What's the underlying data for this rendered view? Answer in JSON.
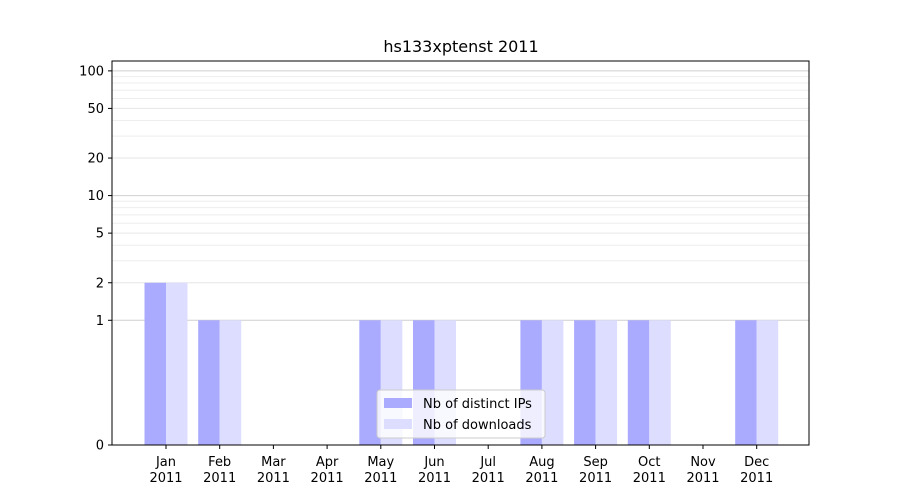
{
  "chart_data": {
    "type": "bar",
    "title": "hs133xptenst 2011",
    "xlabel": "",
    "ylabel": "",
    "categories": [
      [
        "Jan",
        "2011"
      ],
      [
        "Feb",
        "2011"
      ],
      [
        "Mar",
        "2011"
      ],
      [
        "Apr",
        "2011"
      ],
      [
        "May",
        "2011"
      ],
      [
        "Jun",
        "2011"
      ],
      [
        "Jul",
        "2011"
      ],
      [
        "Aug",
        "2011"
      ],
      [
        "Sep",
        "2011"
      ],
      [
        "Oct",
        "2011"
      ],
      [
        "Nov",
        "2011"
      ],
      [
        "Dec",
        "2011"
      ]
    ],
    "series": [
      {
        "name": "Nb of distinct IPs",
        "color": "#aaaaff",
        "values": [
          2,
          1,
          0,
          0,
          1,
          1,
          0,
          1,
          1,
          1,
          0,
          1
        ]
      },
      {
        "name": "Nb of downloads",
        "color": "#ddddff",
        "values": [
          2,
          1,
          0,
          0,
          1,
          1,
          0,
          1,
          1,
          1,
          0,
          1
        ]
      }
    ],
    "yscale": "symlog",
    "ylim": [
      0,
      120
    ],
    "yticks": [
      0,
      1,
      2,
      5,
      10,
      20,
      50,
      100
    ],
    "ytick_labels": [
      "0",
      "1",
      "2",
      "5",
      "10",
      "20",
      "50",
      "100"
    ],
    "grid": true,
    "legend_position": "lower-center"
  }
}
